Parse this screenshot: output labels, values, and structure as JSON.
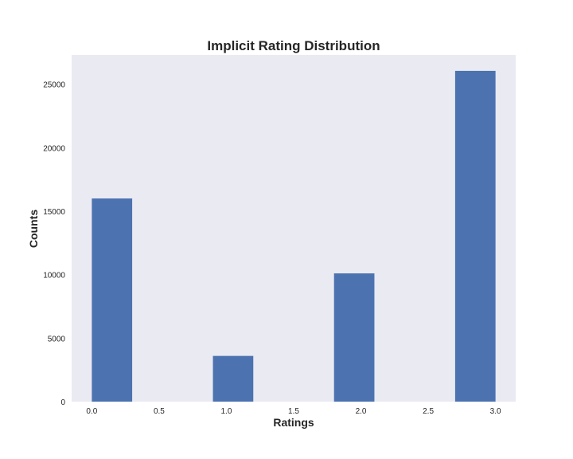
{
  "chart_data": {
    "type": "bar",
    "title": "Implicit Rating Distribution",
    "xlabel": "Ratings",
    "ylabel": "Counts",
    "xlim": [
      -0.15,
      3.15
    ],
    "ylim": [
      0,
      27300
    ],
    "grid": false,
    "x_ticks": [
      "0.0",
      "0.5",
      "1.0",
      "1.5",
      "2.0",
      "2.5",
      "3.0"
    ],
    "x_tick_values": [
      0,
      0.5,
      1.0,
      1.5,
      2.0,
      2.5,
      3.0
    ],
    "y_ticks": [
      "0",
      "5000",
      "10000",
      "15000",
      "20000",
      "25000"
    ],
    "y_tick_values": [
      0,
      5000,
      10000,
      15000,
      20000,
      25000
    ],
    "bins": [
      {
        "x0": 0.0,
        "x1": 0.3,
        "value": 16000
      },
      {
        "x0": 0.9,
        "x1": 1.2,
        "value": 3600
      },
      {
        "x0": 1.8,
        "x1": 2.1,
        "value": 10100
      },
      {
        "x0": 2.7,
        "x1": 3.0,
        "value": 26050
      }
    ],
    "colors": {
      "bar": "#4c72b0",
      "plot_background": "#eaeaf2",
      "text": "#262626"
    }
  }
}
